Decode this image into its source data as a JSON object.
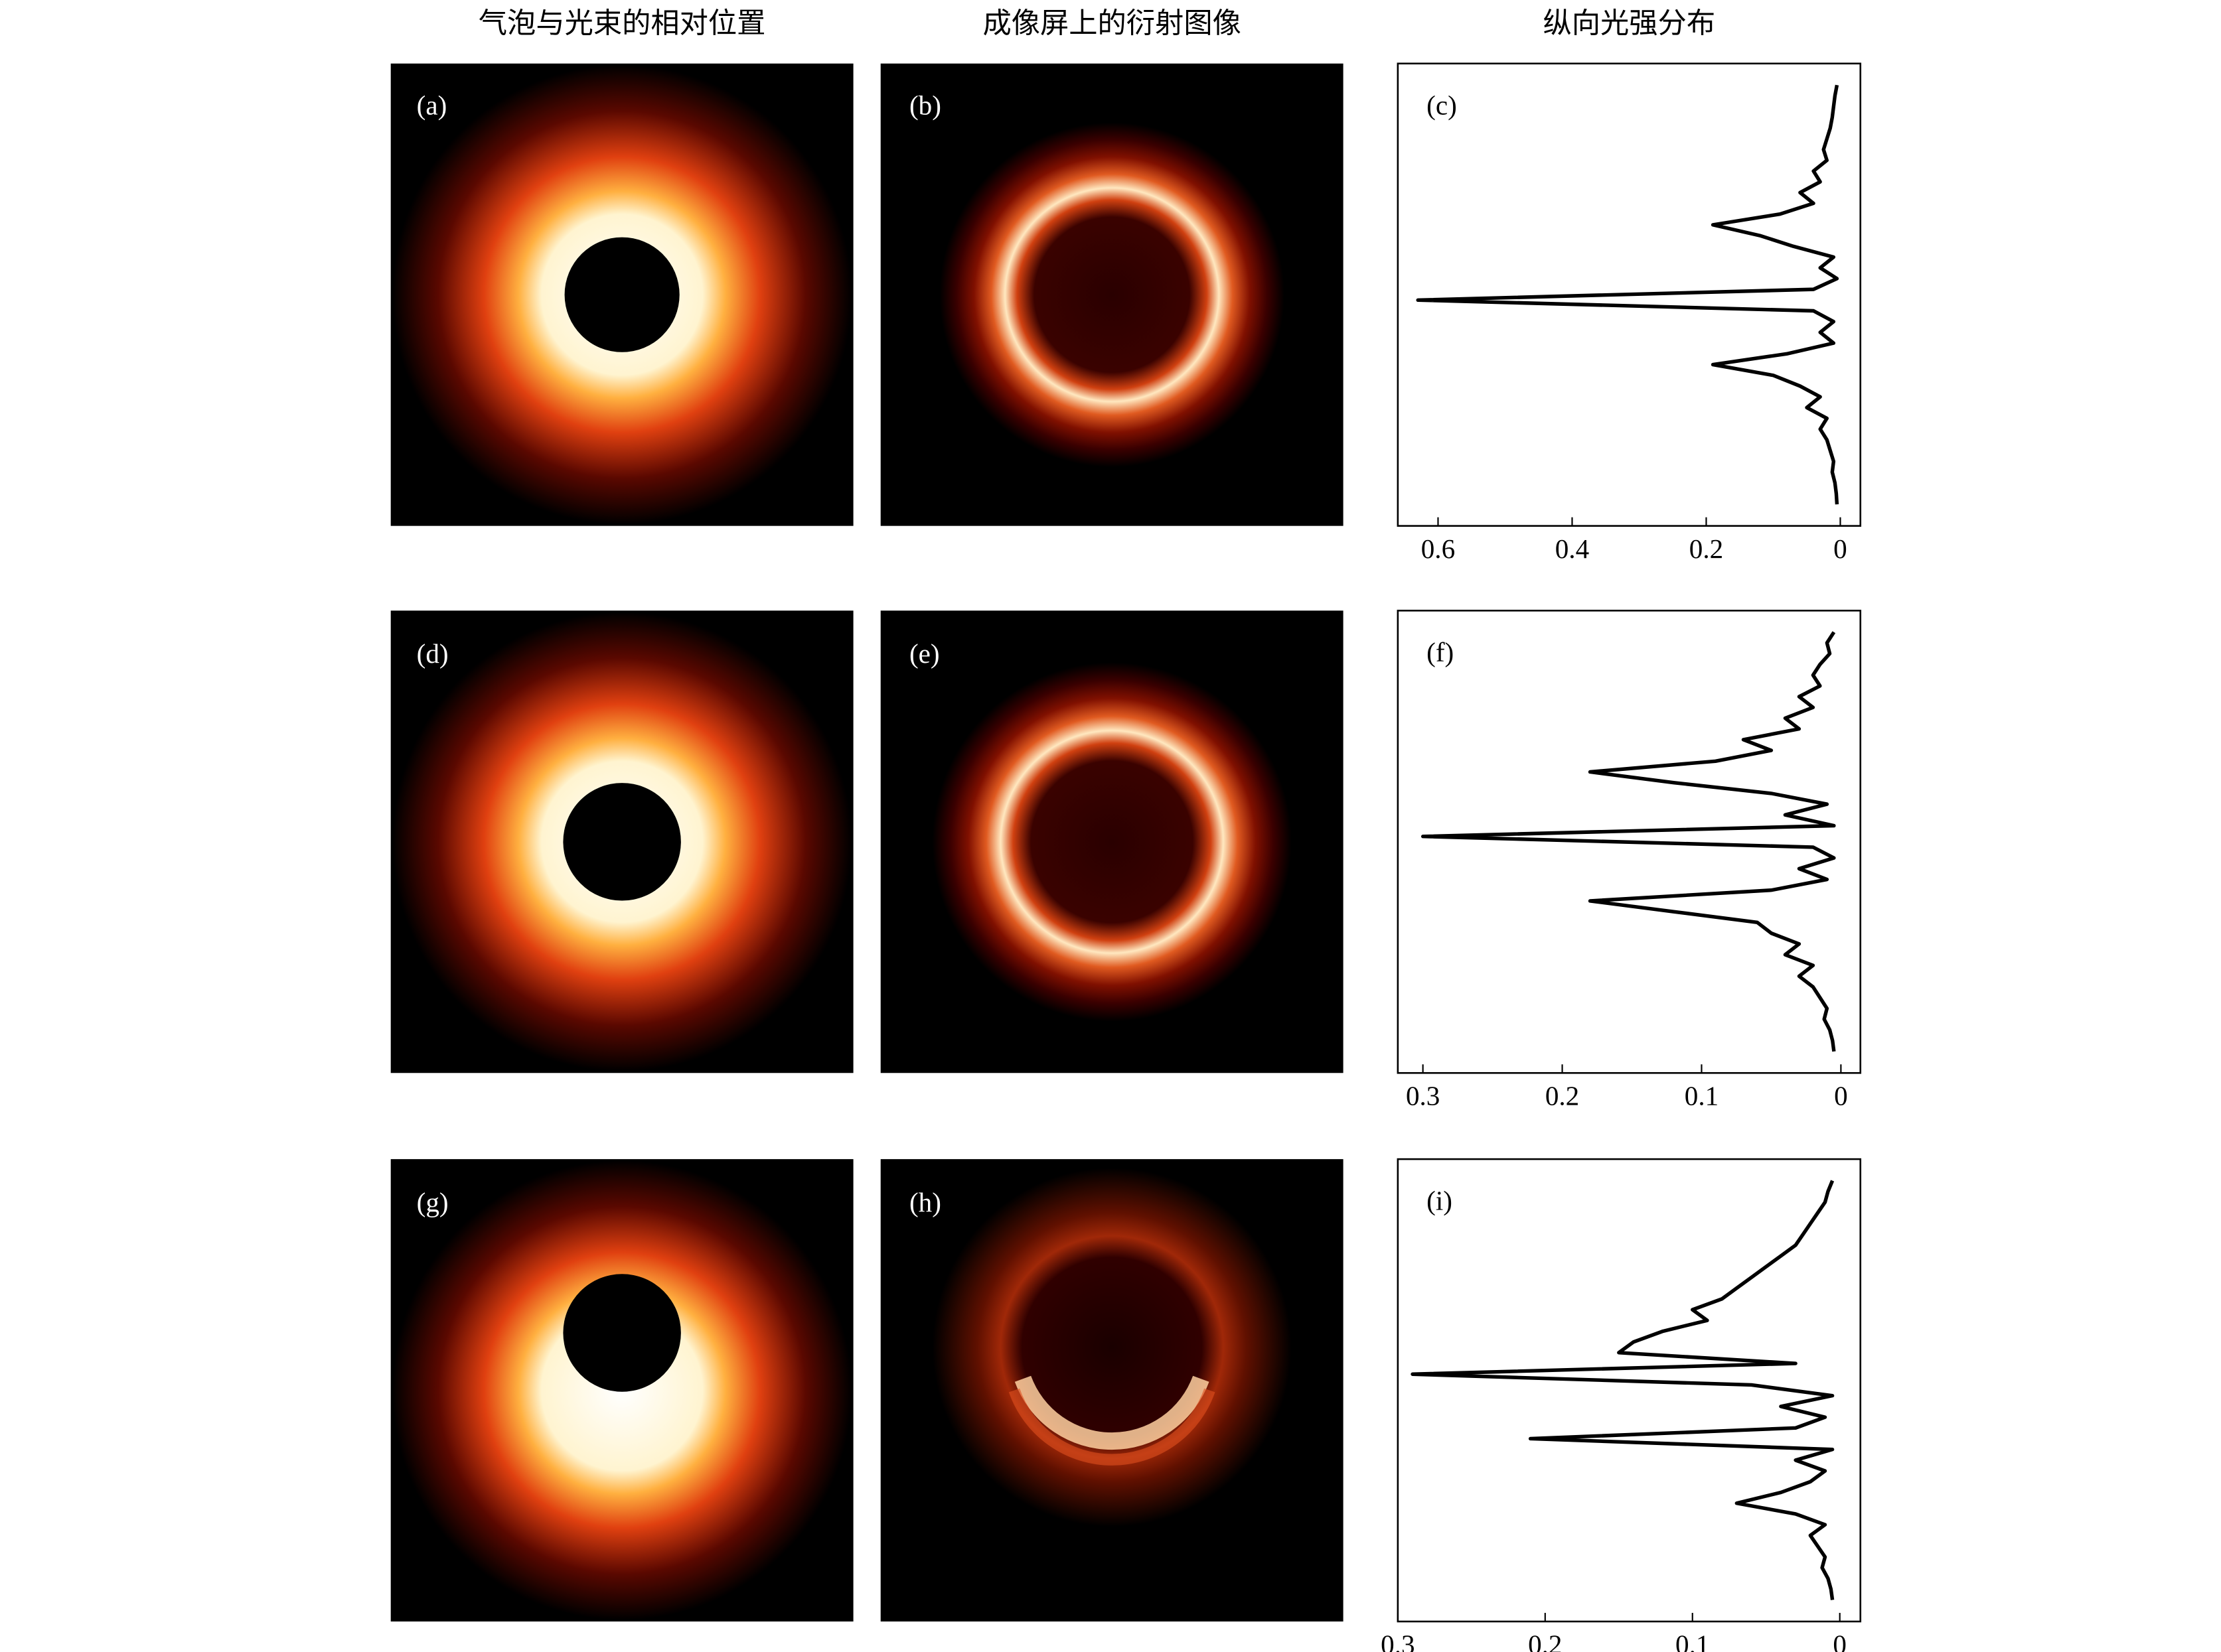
{
  "column_titles": [
    "气泡与光束的相对位置",
    "成像屏上的衍射图像",
    "纵向光强分布"
  ],
  "image_panels": [
    {
      "label": "(a)"
    },
    {
      "label": "(b)"
    },
    {
      "label": "(d)"
    },
    {
      "label": "(e)"
    },
    {
      "label": "(g)"
    },
    {
      "label": "(h)"
    }
  ],
  "chart_data": [
    {
      "type": "line",
      "label": "(c)",
      "color": "#000000",
      "xlim": [
        0.66,
        -0.03
      ],
      "xticks": [
        0.6,
        0.4,
        0.2,
        0
      ],
      "values": [
        0.005,
        0.008,
        0.01,
        0.012,
        0.015,
        0.02,
        0.025,
        0.02,
        0.04,
        0.03,
        0.06,
        0.04,
        0.09,
        0.19,
        0.12,
        0.07,
        0.01,
        0.03,
        0.005,
        0.04,
        0.63,
        0.04,
        0.01,
        0.03,
        0.01,
        0.08,
        0.19,
        0.1,
        0.06,
        0.03,
        0.05,
        0.02,
        0.03,
        0.02,
        0.015,
        0.01,
        0.012,
        0.008,
        0.006,
        0.005
      ]
    },
    {
      "type": "line",
      "label": "(f)",
      "color": "#000000",
      "xlim": [
        0.318,
        -0.014
      ],
      "xticks": [
        0.3,
        0.2,
        0.1,
        0
      ],
      "values": [
        0.005,
        0.01,
        0.008,
        0.015,
        0.02,
        0.015,
        0.03,
        0.02,
        0.04,
        0.03,
        0.07,
        0.05,
        0.09,
        0.18,
        0.12,
        0.05,
        0.01,
        0.04,
        0.005,
        0.3,
        0.02,
        0.005,
        0.03,
        0.01,
        0.05,
        0.18,
        0.12,
        0.06,
        0.05,
        0.03,
        0.04,
        0.02,
        0.03,
        0.02,
        0.015,
        0.01,
        0.012,
        0.008,
        0.006,
        0.005
      ]
    },
    {
      "type": "line",
      "label": "(i)",
      "color": "#000000",
      "xlim": [
        0.3,
        -0.014
      ],
      "xticks": [
        0.3,
        0.2,
        0.1,
        0
      ],
      "values": [
        0.005,
        0.008,
        0.01,
        0.015,
        0.02,
        0.025,
        0.03,
        0.04,
        0.05,
        0.06,
        0.07,
        0.08,
        0.1,
        0.09,
        0.12,
        0.14,
        0.15,
        0.03,
        0.29,
        0.06,
        0.005,
        0.04,
        0.01,
        0.03,
        0.21,
        0.005,
        0.03,
        0.01,
        0.02,
        0.04,
        0.07,
        0.03,
        0.01,
        0.02,
        0.015,
        0.01,
        0.012,
        0.008,
        0.006,
        0.005
      ]
    }
  ]
}
